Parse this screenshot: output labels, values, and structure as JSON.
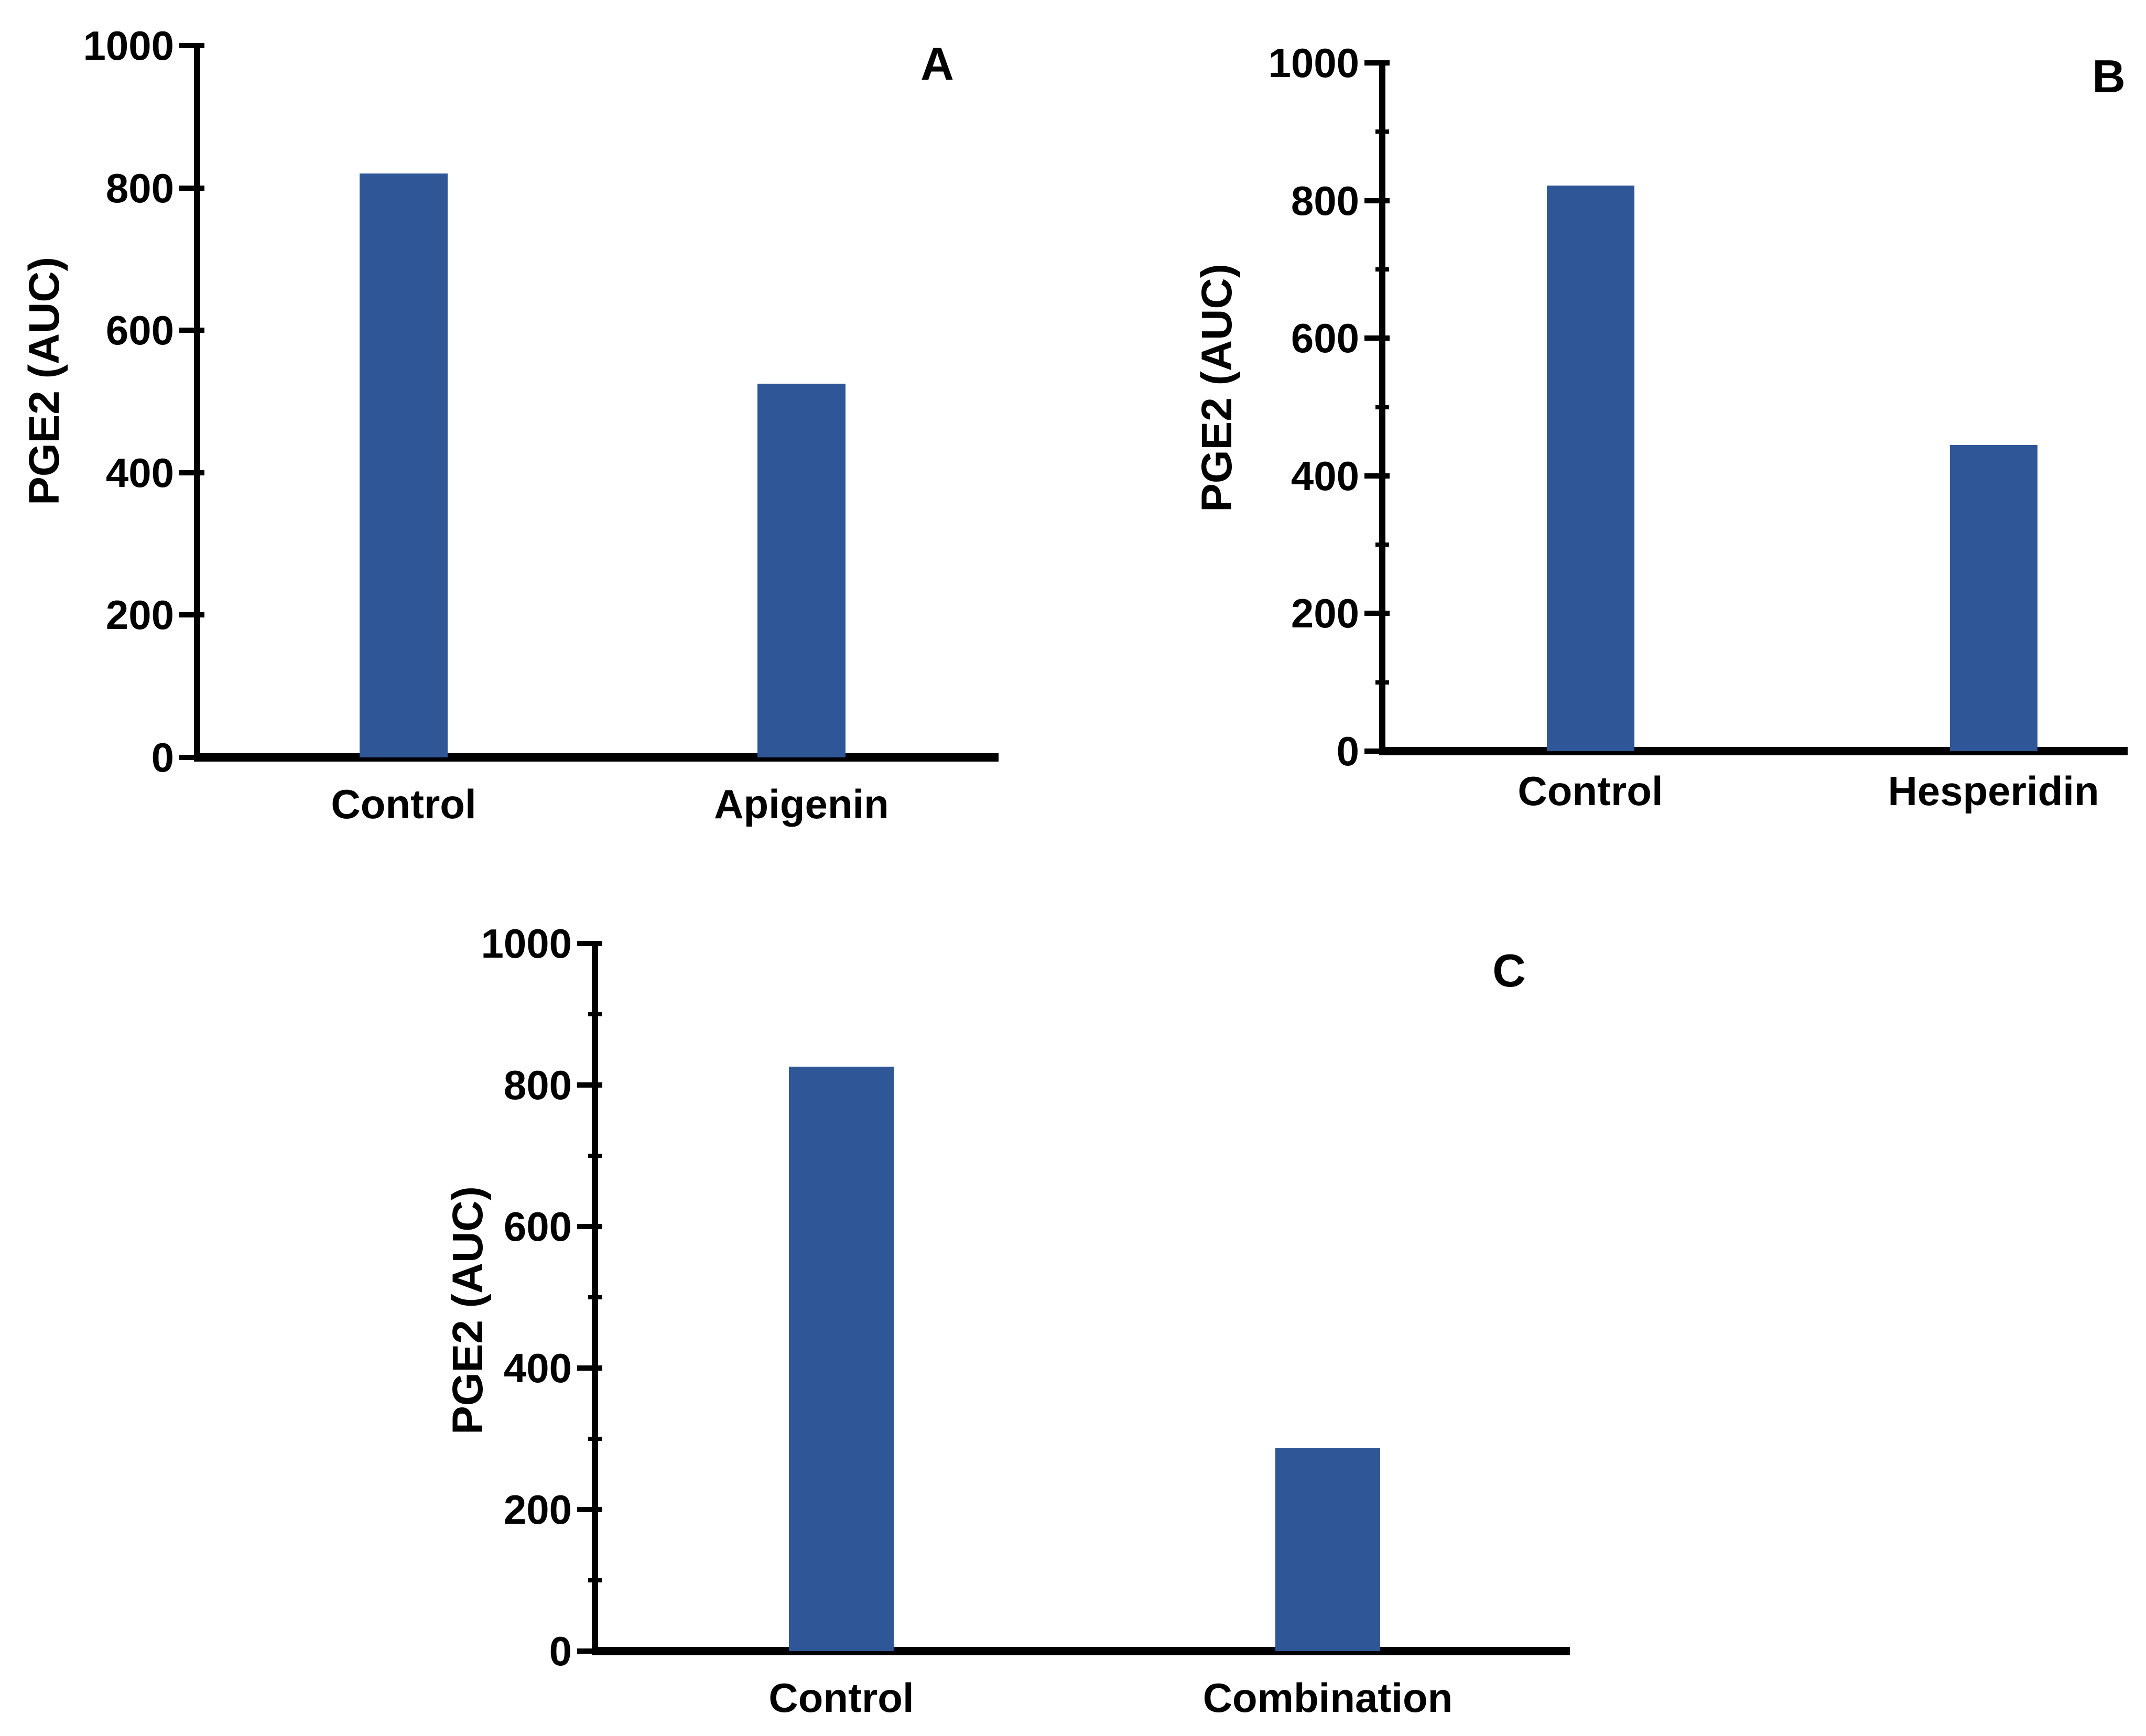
{
  "figure": {
    "background": "#ffffff",
    "bar_color": "#2F5697",
    "axis_color": "#000000",
    "text_color": "#000000"
  },
  "chart_data": [
    {
      "panel": "A",
      "type": "bar",
      "title": "A",
      "ylabel": "PGE2 (AUC)",
      "xlabel": "",
      "categories": [
        "Control",
        "Apigenin"
      ],
      "values": [
        820,
        525
      ],
      "ylim": [
        0,
        1000
      ],
      "yticks": [
        0,
        200,
        400,
        600,
        800,
        1000
      ],
      "ytick_labels": [
        "0",
        "200",
        "400",
        "600",
        "800",
        "1000"
      ],
      "minor_tick_interval": null,
      "grid": false,
      "legend_position": "none"
    },
    {
      "panel": "B",
      "type": "bar",
      "title": "B",
      "ylabel": "PGE2 (AUC)",
      "xlabel": "",
      "categories": [
        "Control",
        "Hesperidin"
      ],
      "values": [
        822,
        445
      ],
      "ylim": [
        0,
        1000
      ],
      "yticks": [
        0,
        200,
        400,
        600,
        800,
        1000
      ],
      "ytick_labels": [
        "0",
        "200",
        "400",
        "600",
        "800",
        "1000"
      ],
      "minor_tick_interval": 100,
      "minor_ticks": [
        100,
        300,
        500,
        700,
        900
      ],
      "grid": false,
      "legend_position": "none"
    },
    {
      "panel": "C",
      "type": "bar",
      "title": "C",
      "ylabel": "PGE2 (AUC)",
      "xlabel": "",
      "categories": [
        "Control",
        "Combination"
      ],
      "values": [
        826,
        287
      ],
      "ylim": [
        0,
        1000
      ],
      "yticks": [
        0,
        200,
        400,
        600,
        800,
        1000
      ],
      "ytick_labels": [
        "0",
        "200",
        "400",
        "600",
        "800",
        "1000"
      ],
      "minor_tick_interval": 100,
      "minor_ticks": [
        100,
        300,
        500,
        700,
        900
      ],
      "grid": false,
      "legend_position": "none"
    }
  ]
}
